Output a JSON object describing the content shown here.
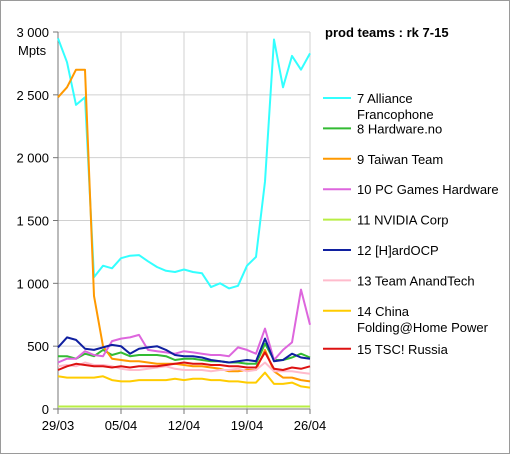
{
  "chart_data": {
    "type": "line",
    "title": "prod teams :  rk 7-15",
    "ylabel": "Mpts",
    "ylim": [
      0,
      3000
    ],
    "yticks": [
      0,
      500,
      1000,
      1500,
      2000,
      2500,
      3000
    ],
    "ytick_labels": [
      "0",
      "500",
      "1 000",
      "1 500",
      "2 000",
      "2 500",
      "3 000"
    ],
    "xticks": [
      {
        "index": 0,
        "label": "29/03"
      },
      {
        "index": 7,
        "label": "05/04"
      },
      {
        "index": 14,
        "label": "12/04"
      },
      {
        "index": 21,
        "label": "19/04"
      },
      {
        "index": 28,
        "label": "26/04"
      }
    ],
    "grid": true,
    "legend_position": "right",
    "series": [
      {
        "name": "7 Alliance Francophone",
        "color": "#33ffff",
        "values": [
          2950,
          2760,
          2420,
          2480,
          1050,
          1140,
          1120,
          1200,
          1220,
          1225,
          1175,
          1130,
          1100,
          1090,
          1110,
          1090,
          1080,
          970,
          1000,
          960,
          980,
          1140,
          1210,
          1810,
          2940,
          2560,
          2810,
          2700,
          2830
        ]
      },
      {
        "name": "8 Hardware.no",
        "color": "#33bb33",
        "values": [
          420,
          420,
          400,
          440,
          420,
          470,
          430,
          450,
          420,
          430,
          430,
          430,
          420,
          390,
          400,
          400,
          390,
          380,
          380,
          370,
          370,
          360,
          360,
          520,
          390,
          390,
          410,
          440,
          410
        ]
      },
      {
        "name": "9 Taiwan Team",
        "color": "#ff9900",
        "values": [
          2480,
          2560,
          2700,
          2700,
          900,
          500,
          400,
          390,
          380,
          380,
          370,
          360,
          360,
          360,
          350,
          340,
          340,
          330,
          320,
          300,
          300,
          310,
          310,
          470,
          300,
          250,
          250,
          230,
          220
        ]
      },
      {
        "name": "10 PC Games Hardware",
        "color": "#dd66dd",
        "values": [
          370,
          400,
          400,
          460,
          430,
          420,
          540,
          560,
          570,
          590,
          470,
          460,
          450,
          440,
          460,
          450,
          440,
          430,
          430,
          420,
          490,
          470,
          440,
          640,
          390,
          470,
          530,
          950,
          670
        ]
      },
      {
        "name": "11 NVIDIA Corp",
        "color": "#b8ee44",
        "values": [
          20,
          20,
          20,
          20,
          20,
          20,
          20,
          20,
          20,
          20,
          20,
          20,
          20,
          20,
          20,
          20,
          20,
          20,
          20,
          20,
          20,
          20,
          20,
          20,
          20,
          20,
          20,
          20,
          20
        ]
      },
      {
        "name": "12 [H]ardOCP",
        "color": "#1020a0",
        "values": [
          490,
          570,
          550,
          480,
          470,
          490,
          510,
          500,
          440,
          480,
          490,
          500,
          470,
          430,
          420,
          420,
          410,
          390,
          380,
          370,
          380,
          390,
          380,
          560,
          380,
          390,
          440,
          410,
          400
        ]
      },
      {
        "name": "13 Team AnandTech",
        "color": "#ffbbcc",
        "values": [
          340,
          350,
          340,
          370,
          350,
          350,
          340,
          320,
          310,
          310,
          320,
          330,
          340,
          320,
          310,
          310,
          310,
          300,
          310,
          310,
          320,
          300,
          310,
          370,
          300,
          300,
          300,
          290,
          280
        ]
      },
      {
        "name": "14 China Folding@Home Power",
        "color": "#ffcc00",
        "values": [
          260,
          250,
          250,
          250,
          250,
          260,
          230,
          220,
          220,
          230,
          230,
          230,
          230,
          240,
          230,
          240,
          240,
          230,
          230,
          220,
          220,
          210,
          210,
          290,
          200,
          200,
          210,
          180,
          170
        ]
      },
      {
        "name": "15 TSC! Russia",
        "color": "#dd1111",
        "values": [
          310,
          340,
          360,
          350,
          340,
          340,
          330,
          340,
          330,
          340,
          340,
          340,
          350,
          360,
          370,
          360,
          360,
          350,
          350,
          340,
          340,
          330,
          330,
          450,
          320,
          310,
          330,
          320,
          340
        ]
      }
    ]
  }
}
